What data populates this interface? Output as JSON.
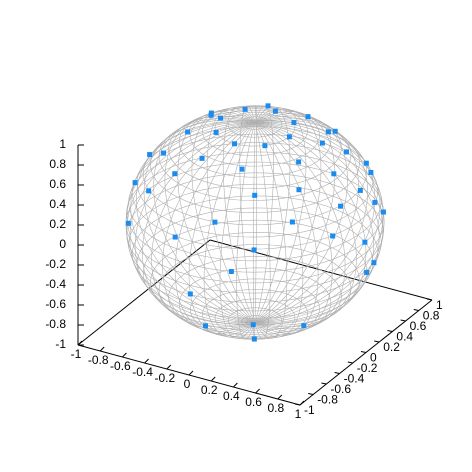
{
  "chart_data": {
    "type": "scatter3d",
    "color": "#1a8cf0",
    "xlim": [
      -1,
      1
    ],
    "ylim": [
      -1,
      1
    ],
    "zlim": [
      -1,
      1
    ],
    "xticks": [
      -1,
      -0.8,
      -0.6,
      -0.4,
      -0.2,
      0,
      0.2,
      0.4,
      0.6,
      0.8,
      1
    ],
    "yticks": [
      -1,
      -0.8,
      -0.6,
      -0.4,
      -0.2,
      0,
      0.2,
      0.4,
      0.6,
      0.8,
      1
    ],
    "zticks": [
      -1,
      -0.8,
      -0.6,
      -0.4,
      -0.2,
      0,
      0.2,
      0.4,
      0.6,
      0.8,
      1
    ],
    "x": [
      0.31,
      0.22,
      0,
      -0.22,
      -0.31,
      -0.22,
      0,
      0.22,
      0.5,
      0.18,
      -0.18,
      -0.5,
      -0.5,
      -0.18,
      0.18,
      0.5,
      0.71,
      0.61,
      0.36,
      -0.61,
      -0.61,
      -0.36,
      0.36,
      0.61,
      0.86,
      0.67,
      0.15,
      -0.86,
      -0.56,
      0.15,
      0.67,
      0.86,
      0.89,
      0.61,
      -0.89,
      -0.16,
      0.48,
      0.89,
      0.86,
      -0.76,
      0.34,
      0.99,
      0.97,
      0,
      0.43,
      0.75,
      -0.22,
      0.22,
      0.44
    ],
    "y": [
      0,
      0.22,
      0.31,
      0.22,
      0,
      -0.22,
      -0.31,
      -0.22,
      0.18,
      0.5,
      0.5,
      0.18,
      -0.18,
      -0.5,
      -0.5,
      -0.18,
      0,
      0.36,
      0.61,
      0.36,
      -0.36,
      -0.61,
      -0.61,
      -0.36,
      0.15,
      0.56,
      0.86,
      -0.15,
      -0.67,
      -0.86,
      -0.56,
      -0.15,
      0.32,
      0.73,
      -0.32,
      -0.94,
      -0.82,
      -0.32,
      0.5,
      -0.64,
      -0.93,
      0,
      0.17,
      -0.98,
      -0.75,
      0.43,
      -0.38,
      -0.38,
      0
    ],
    "z": [
      0.95,
      0.95,
      0.95,
      0.95,
      0.95,
      0.95,
      0.95,
      0.95,
      0.85,
      0.85,
      0.85,
      0.85,
      0.85,
      0.85,
      0.85,
      0.85,
      0.7,
      0.7,
      0.7,
      0.7,
      0.7,
      0.7,
      0.7,
      0.7,
      0.5,
      0.5,
      0.5,
      0.5,
      0.5,
      0.5,
      0.5,
      0.5,
      0.3,
      0.3,
      0.3,
      0.3,
      0.3,
      0.3,
      0.1,
      0.1,
      0.1,
      0.1,
      -0.2,
      -0.2,
      -0.5,
      -0.5,
      -0.9,
      -0.9,
      -0.9
    ]
  }
}
